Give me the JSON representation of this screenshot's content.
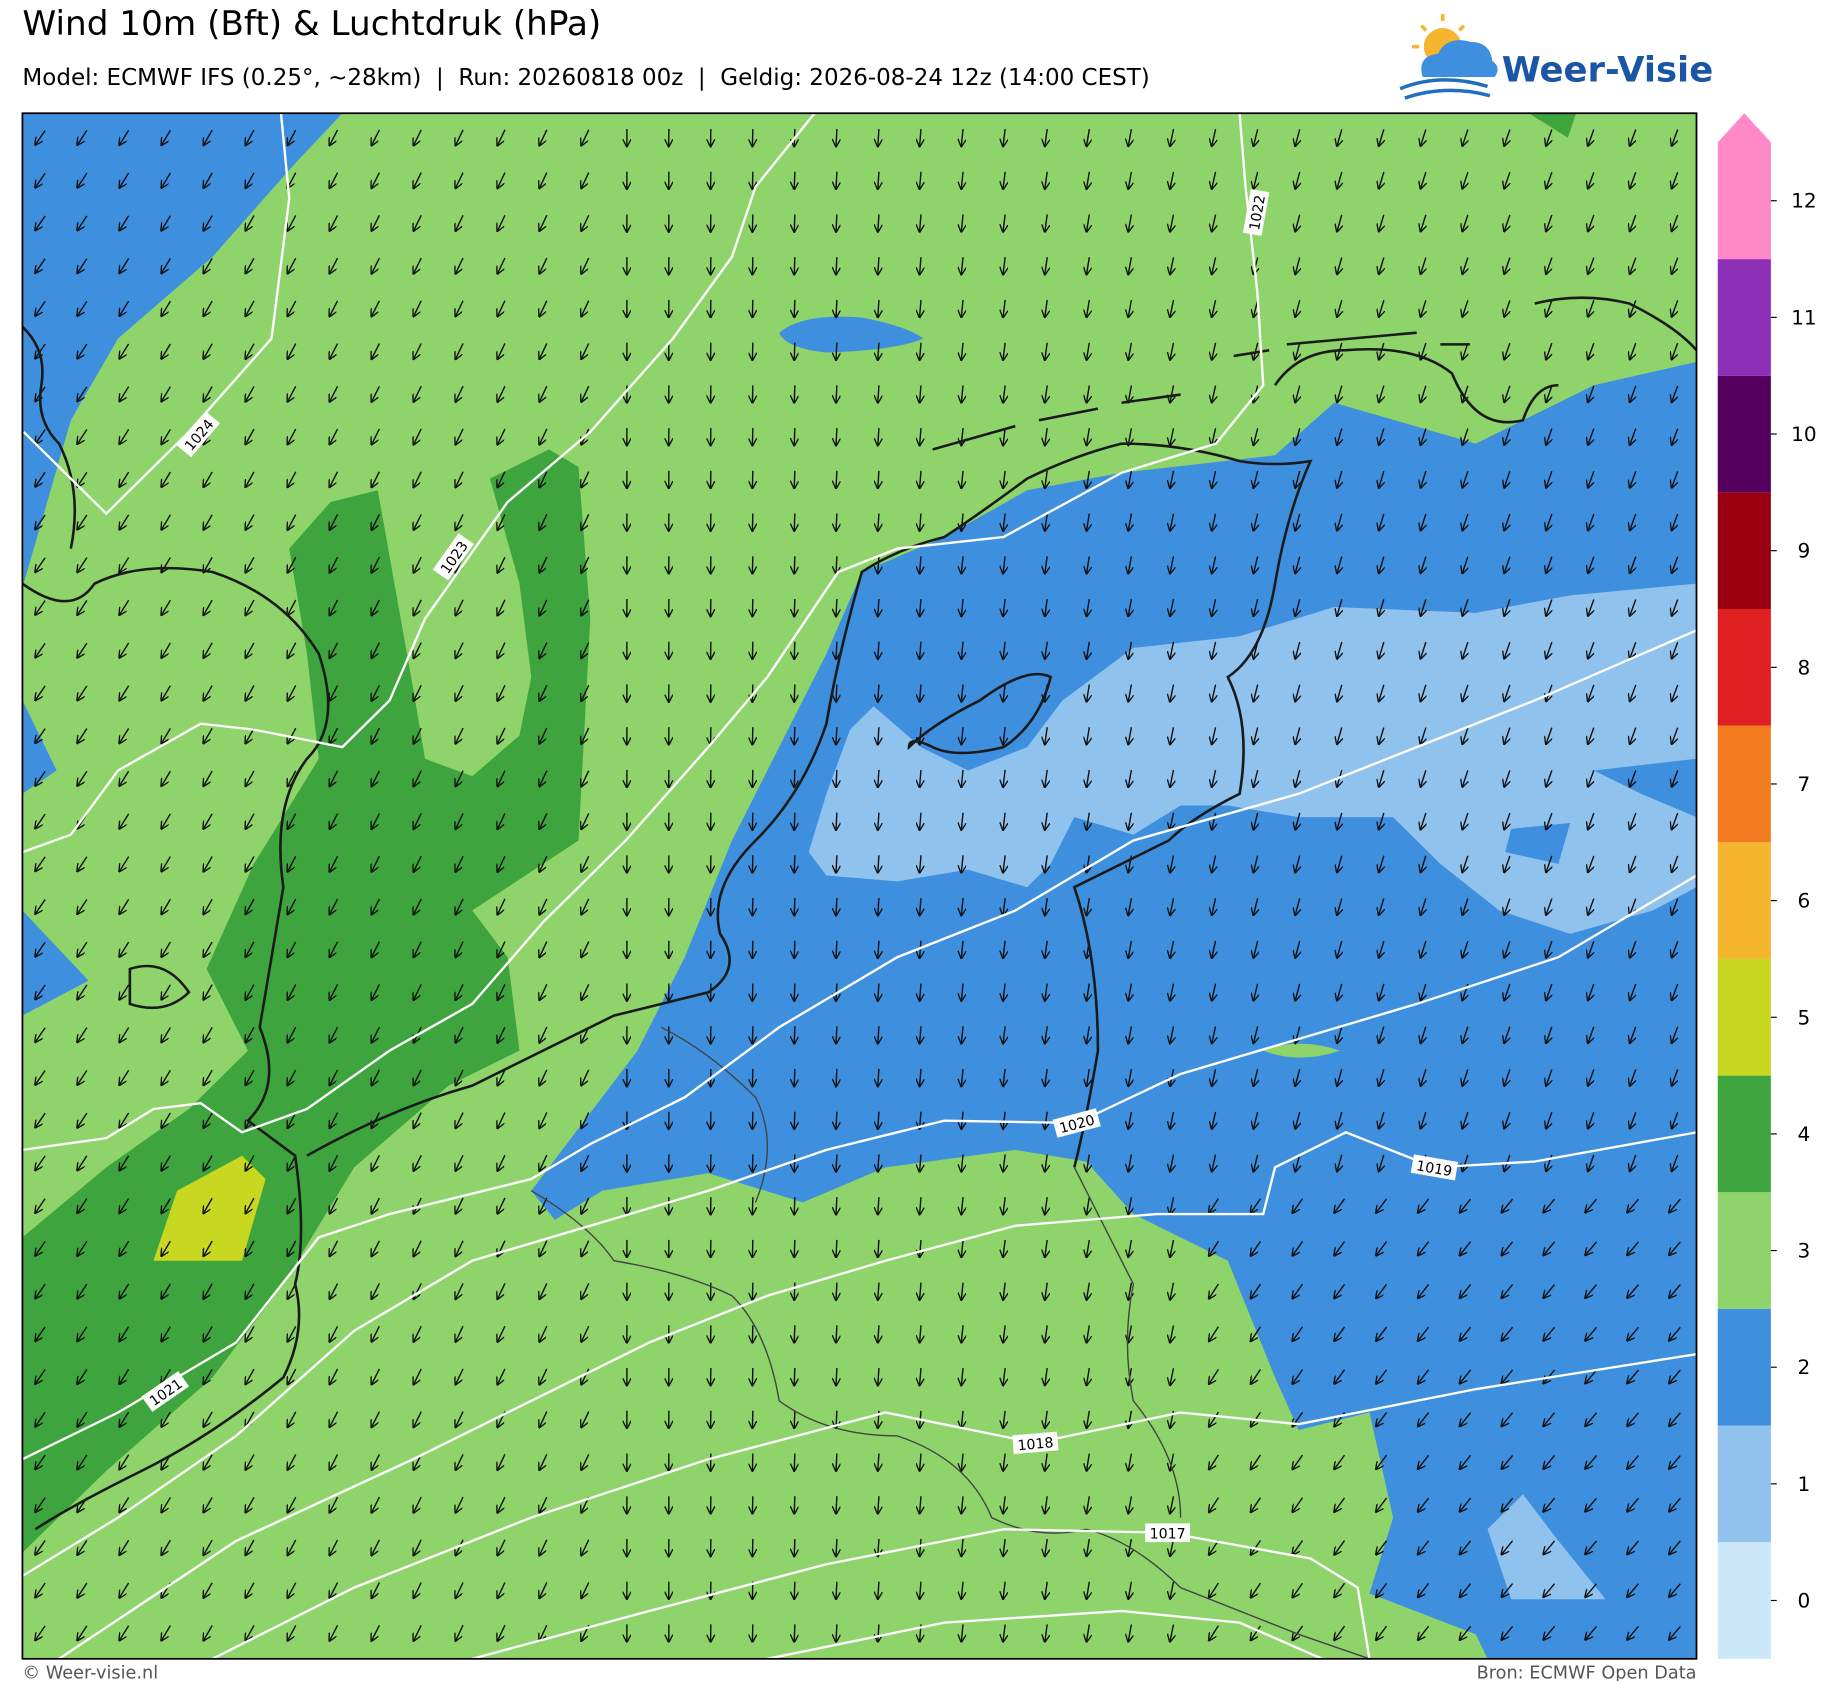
{
  "header": {
    "title": "Wind 10m (Bft) & Luchtdruk (hPa)",
    "subtitle": "Model: ECMWF IFS (0.25°, ~28km)  |  Run: 20260818 00z  |  Geldig: 2026-08-24 12z (14:00 CEST)",
    "logo": "Weer-Visie"
  },
  "map": {
    "isobars": [
      {
        "label": "1024"
      },
      {
        "label": "1023"
      },
      {
        "label": "1022"
      },
      {
        "label": "1021"
      },
      {
        "label": "1020"
      },
      {
        "label": "1019"
      },
      {
        "label": "1018"
      },
      {
        "label": "1017"
      }
    ]
  },
  "legend": {
    "levels": [
      {
        "value": "0",
        "color": "#cce6fa"
      },
      {
        "value": "1",
        "color": "#90c2ee"
      },
      {
        "value": "2",
        "color": "#3f8fdf"
      },
      {
        "value": "3",
        "color": "#8fd46a"
      },
      {
        "value": "4",
        "color": "#3ea53e"
      },
      {
        "value": "5",
        "color": "#c8d820"
      },
      {
        "value": "6",
        "color": "#f6b52e"
      },
      {
        "value": "7",
        "color": "#f47c20"
      },
      {
        "value": "8",
        "color": "#e02020"
      },
      {
        "value": "9",
        "color": "#9a0010"
      },
      {
        "value": "10",
        "color": "#55005f"
      },
      {
        "value": "11",
        "color": "#8e2fb8"
      },
      {
        "value": "12",
        "color": "#ff88c8"
      }
    ]
  },
  "footer": {
    "left": "© Weer-visie.nl",
    "right": "Bron: ECMWF Open Data"
  }
}
